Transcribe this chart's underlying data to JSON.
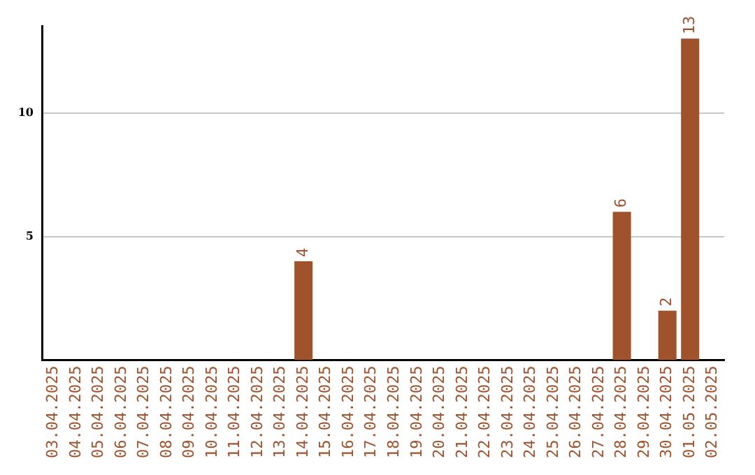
{
  "chart_data": {
    "type": "bar",
    "categories": [
      "03.04.2025",
      "04.04.2025",
      "05.04.2025",
      "06.04.2025",
      "07.04.2025",
      "08.04.2025",
      "09.04.2025",
      "10.04.2025",
      "11.04.2025",
      "12.04.2025",
      "13.04.2025",
      "14.04.2025",
      "15.04.2025",
      "16.04.2025",
      "17.04.2025",
      "18.04.2025",
      "19.04.2025",
      "20.04.2025",
      "21.04.2025",
      "22.04.2025",
      "23.04.2025",
      "24.04.2025",
      "25.04.2025",
      "26.04.2025",
      "27.04.2025",
      "28.04.2025",
      "29.04.2025",
      "30.04.2025",
      "01.05.2025",
      "02.05.2025"
    ],
    "values": [
      null,
      null,
      null,
      null,
      null,
      null,
      null,
      null,
      null,
      null,
      null,
      4,
      null,
      null,
      null,
      null,
      null,
      null,
      null,
      null,
      null,
      null,
      null,
      null,
      null,
      6,
      null,
      2,
      13,
      null
    ],
    "color": "#a0522d",
    "ylim": [
      0,
      13.5
    ],
    "yticks": [
      5,
      10
    ],
    "grid": "y",
    "data_labels": true
  }
}
